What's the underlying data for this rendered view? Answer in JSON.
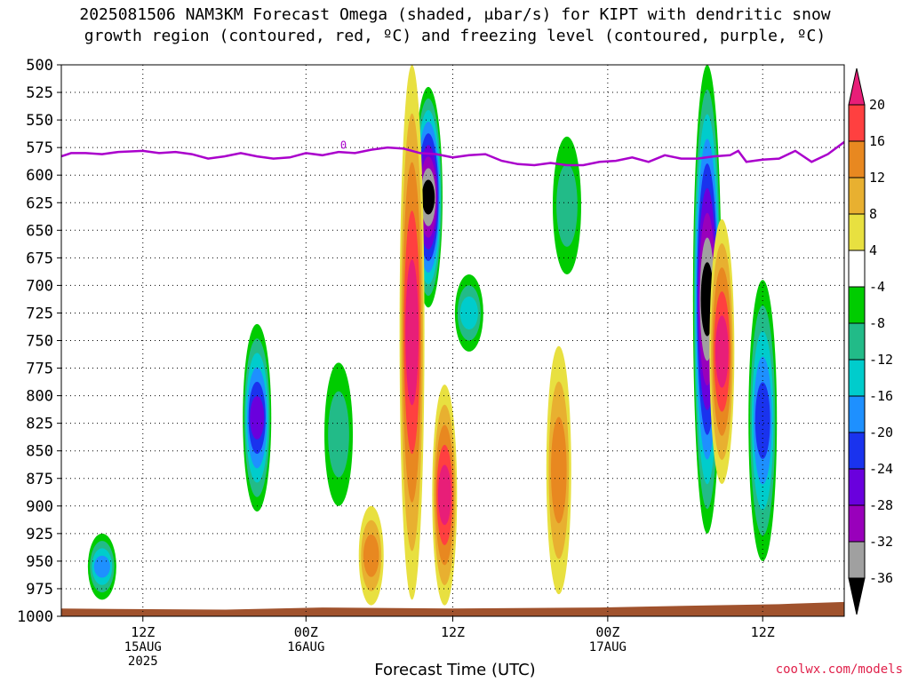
{
  "title": {
    "line1": "2025081506 NAM3KM Forecast Omega (shaded, μbar/s) for KIPT with dendritic snow",
    "line2": "growth region (contoured, red, ºC) and freezing level (contoured, purple, ºC)"
  },
  "credit": "coolwx.com/models",
  "colors": {
    "freezing_level": "#aa00cc",
    "ground": "#a0522d",
    "grid": "#000000"
  },
  "chart_data": {
    "type": "heatmap",
    "xlabel": "Forecast Time (UTC)",
    "x_range_hours": [
      0,
      48
    ],
    "y_range_mb": [
      1000,
      500
    ],
    "y_ticks": [
      500,
      525,
      550,
      575,
      600,
      625,
      650,
      675,
      700,
      725,
      750,
      775,
      800,
      825,
      850,
      875,
      900,
      925,
      950,
      975,
      1000
    ],
    "x_ticks": [
      {
        "hour": 5,
        "labels": [
          "12Z",
          "15AUG",
          "2025"
        ]
      },
      {
        "hour": 15,
        "labels": [
          "00Z",
          "16AUG"
        ]
      },
      {
        "hour": 24,
        "labels": [
          "12Z"
        ]
      },
      {
        "hour": 33.5,
        "labels": [
          "00Z",
          "17AUG"
        ]
      },
      {
        "hour": 43,
        "labels": [
          "12Z"
        ]
      }
    ],
    "colorbar": {
      "levels": [
        -36,
        -32,
        -28,
        -24,
        -20,
        -16,
        -12,
        -8,
        -4,
        4,
        8,
        12,
        16,
        20
      ],
      "label_levels": [
        20,
        16,
        12,
        8,
        4,
        -4,
        -8,
        -12,
        -16,
        -20,
        -24,
        -28,
        -32,
        -36
      ],
      "colors": [
        "#000000",
        "#a0a0a0",
        "#9900bb",
        "#6a00dd",
        "#1a33ee",
        "#1e90ff",
        "#00cccc",
        "#22bb88",
        "#00cc00",
        "#ffffff",
        "#e8e040",
        "#e8b030",
        "#e88820",
        "#ff4040",
        "#e81e78"
      ]
    },
    "freezing_level_label": "0",
    "freezing_level_mb": [
      [
        0,
        583
      ],
      [
        0.6,
        580
      ],
      [
        1.5,
        580
      ],
      [
        2.5,
        581
      ],
      [
        3.5,
        579
      ],
      [
        5,
        578
      ],
      [
        6,
        580
      ],
      [
        7,
        579
      ],
      [
        8,
        581
      ],
      [
        9,
        585
      ],
      [
        10,
        583
      ],
      [
        11,
        580
      ],
      [
        12,
        583
      ],
      [
        13,
        585
      ],
      [
        14,
        584
      ],
      [
        15,
        580
      ],
      [
        16,
        582
      ],
      [
        17,
        579
      ],
      [
        18,
        580
      ],
      [
        19,
        577
      ],
      [
        20,
        575
      ],
      [
        21,
        576
      ],
      [
        22,
        580
      ],
      [
        23,
        581
      ],
      [
        24,
        584
      ],
      [
        25,
        582
      ],
      [
        26,
        581
      ],
      [
        27,
        587
      ],
      [
        28,
        590
      ],
      [
        29,
        591
      ],
      [
        30,
        589
      ],
      [
        31,
        591
      ],
      [
        32,
        591
      ],
      [
        33,
        588
      ],
      [
        34,
        587
      ],
      [
        35,
        584
      ],
      [
        36,
        588
      ],
      [
        37,
        582
      ],
      [
        38,
        585
      ],
      [
        39,
        585
      ],
      [
        40,
        583
      ],
      [
        41,
        582
      ],
      [
        41.5,
        578
      ],
      [
        42,
        588
      ],
      [
        43,
        586
      ],
      [
        44,
        585
      ],
      [
        45,
        578
      ],
      [
        46,
        588
      ],
      [
        47,
        581
      ],
      [
        48,
        570
      ]
    ],
    "omega_features": [
      {
        "hour": 22.5,
        "top_mb": 520,
        "bottom_mb": 720,
        "min": -36,
        "kind": "updraft"
      },
      {
        "hour": 39.6,
        "top_mb": 500,
        "bottom_mb": 925,
        "min": -36,
        "kind": "updraft"
      },
      {
        "hour": 12.0,
        "top_mb": 735,
        "bottom_mb": 905,
        "min": -24,
        "kind": "updraft"
      },
      {
        "hour": 43.0,
        "top_mb": 695,
        "bottom_mb": 950,
        "min": -20,
        "kind": "updraft"
      },
      {
        "hour": 25.0,
        "top_mb": 690,
        "bottom_mb": 760,
        "min": -12,
        "kind": "updraft"
      },
      {
        "hour": 2.5,
        "top_mb": 925,
        "bottom_mb": 985,
        "min": -16,
        "kind": "updraft"
      },
      {
        "hour": 17.0,
        "top_mb": 770,
        "bottom_mb": 900,
        "min": -8,
        "kind": "updraft"
      },
      {
        "hour": 31.0,
        "top_mb": 565,
        "bottom_mb": 690,
        "min": -8,
        "kind": "updraft"
      },
      {
        "hour": 21.5,
        "top_mb": 500,
        "bottom_mb": 985,
        "max": 20,
        "kind": "downdraft"
      },
      {
        "hour": 23.5,
        "top_mb": 790,
        "bottom_mb": 990,
        "max": 20,
        "kind": "downdraft"
      },
      {
        "hour": 30.5,
        "top_mb": 755,
        "bottom_mb": 980,
        "max": 12,
        "kind": "downdraft"
      },
      {
        "hour": 40.5,
        "top_mb": 640,
        "bottom_mb": 880,
        "max": 20,
        "kind": "downdraft"
      },
      {
        "hour": 19.0,
        "top_mb": 900,
        "bottom_mb": 990,
        "max": 12,
        "kind": "downdraft"
      }
    ]
  }
}
